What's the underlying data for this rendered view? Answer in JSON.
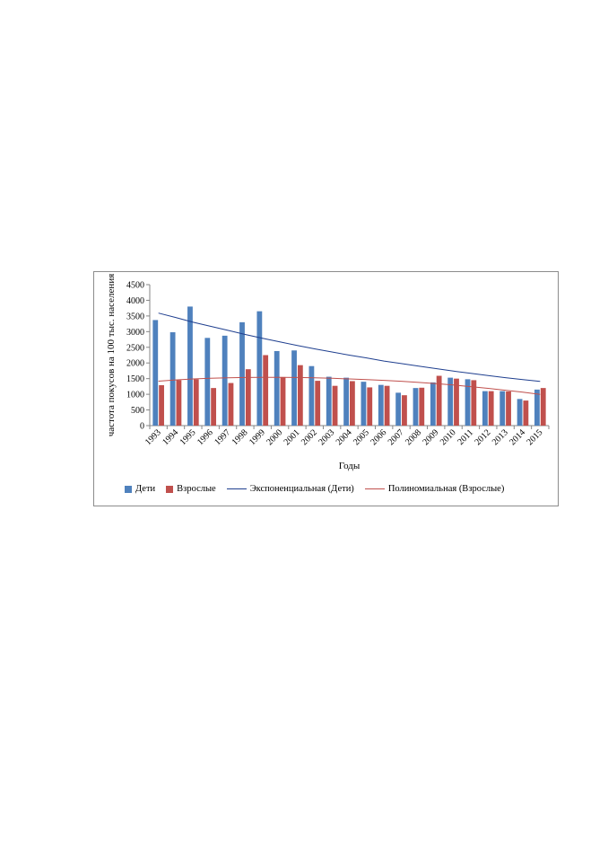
{
  "chart_data": {
    "type": "bar",
    "title": "",
    "xlabel": "Годы",
    "ylabel": "частота покусов на 100 тыс. населения",
    "ylim": [
      0,
      4500
    ],
    "yticks": [
      0,
      500,
      1000,
      1500,
      2000,
      2500,
      3000,
      3500,
      4000,
      4500
    ],
    "categories": [
      "1993",
      "1994",
      "1995",
      "1996",
      "1997",
      "1998",
      "1999",
      "2000",
      "2001",
      "2002",
      "2003",
      "2004",
      "2005",
      "2006",
      "2007",
      "2008",
      "2009",
      "2010",
      "2011",
      "2012",
      "2013",
      "2014",
      "2015"
    ],
    "series": [
      {
        "name": "Дети",
        "color": "#4f81bd",
        "values": [
          3370,
          2980,
          3800,
          2800,
          2870,
          3300,
          3650,
          2380,
          2400,
          1900,
          1560,
          1530,
          1400,
          1300,
          1050,
          1200,
          1380,
          1530,
          1480,
          1100,
          1100,
          850,
          1150
        ]
      },
      {
        "name": "Взрослые",
        "color": "#c0504d",
        "values": [
          1290,
          1450,
          1480,
          1200,
          1360,
          1800,
          2250,
          1550,
          1930,
          1430,
          1270,
          1420,
          1220,
          1270,
          970,
          1210,
          1590,
          1500,
          1450,
          1100,
          1090,
          800,
          1200
        ]
      }
    ],
    "trendlines": [
      {
        "name": "Экспоненциальная (Дети)",
        "color": "#1f3f8f",
        "kind": "exponential",
        "values": [
          3590,
          3450,
          3300,
          3170,
          3040,
          2910,
          2790,
          2670,
          2560,
          2450,
          2350,
          2250,
          2160,
          2060,
          1980,
          1900,
          1820,
          1740,
          1670,
          1600,
          1530,
          1470,
          1410
        ]
      },
      {
        "name": "Полиномиальная (Взрослые)",
        "color": "#c0504d",
        "kind": "polynomial",
        "values": [
          1420,
          1460,
          1490,
          1510,
          1525,
          1535,
          1540,
          1540,
          1535,
          1525,
          1510,
          1490,
          1470,
          1445,
          1415,
          1380,
          1340,
          1295,
          1245,
          1190,
          1130,
          1065,
          995
        ]
      }
    ],
    "legend_position": "bottom",
    "grid": false
  }
}
